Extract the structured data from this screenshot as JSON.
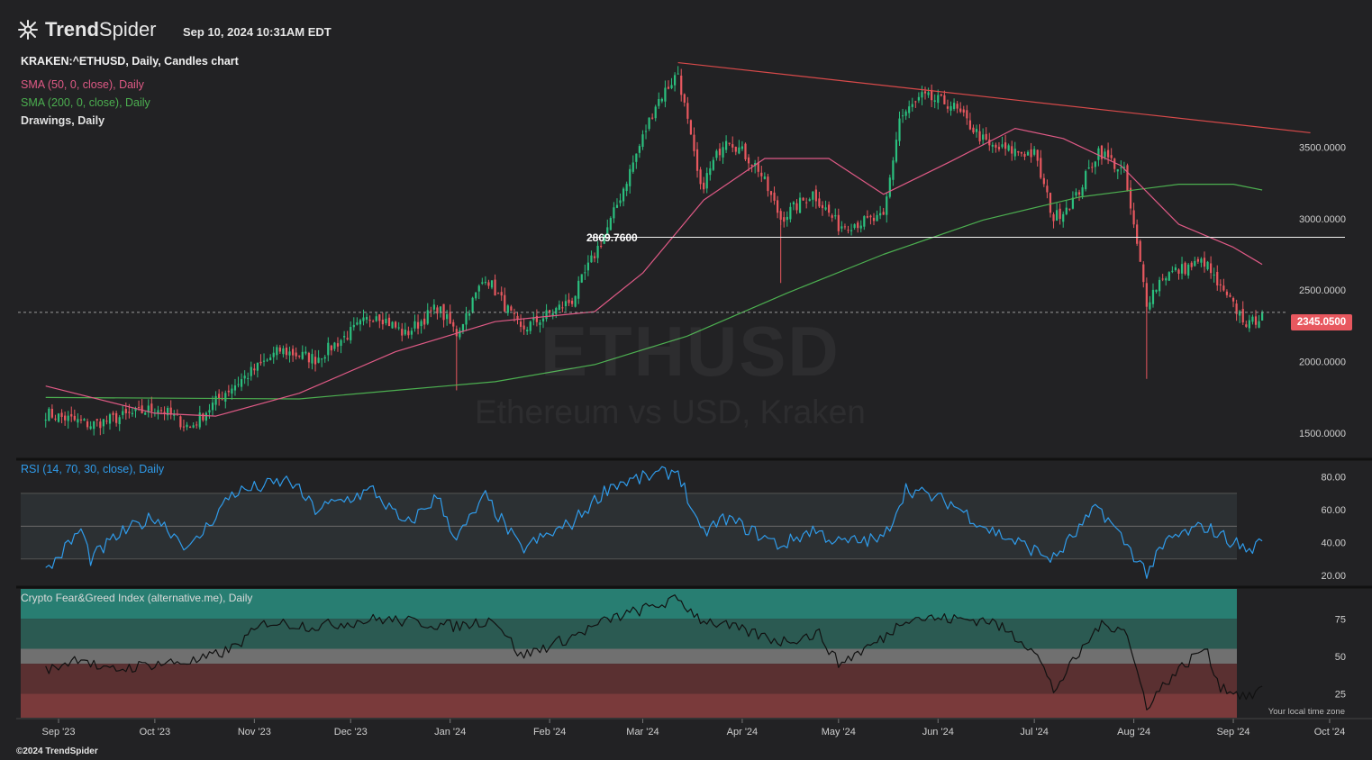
{
  "header": {
    "brand_bold": "Trend",
    "brand_light": "Spider",
    "timestamp": "Sep 10, 2024 10:31AM EDT",
    "symbol_line": "KRAKEN:^ETHUSD, Daily, Candles chart",
    "sma50": "SMA (50, 0, close), Daily",
    "sma200": "SMA (200, 0, close), Daily",
    "drawings": "Drawings, Daily"
  },
  "watermark": {
    "ticker": "ETHUSD",
    "name": "Ethereum vs USD, Kraken"
  },
  "footer": {
    "copyright": "©2024 TrendSpider",
    "timezone_note": "Your local time zone"
  },
  "colors": {
    "background": "#222224",
    "candle_up": "#2bbf7e",
    "candle_down": "#e8585f",
    "sma50": "#e05a86",
    "sma200": "#4caf50",
    "rsi": "#2f9bea",
    "trendline": "#d84a4a",
    "fear_greed_line": "#111111"
  },
  "chart_data": [
    {
      "type": "candlestick",
      "name": "price",
      "ylim": [
        1350,
        4150
      ],
      "yticks": [
        "3500.0000",
        "3000.0000",
        "2500.0000",
        "2000.0000",
        "1500.0000"
      ],
      "ytick_values": [
        3500,
        3000,
        2500,
        2000,
        1500
      ],
      "x_dates": [
        "Sep '23",
        "Oct '23",
        "Nov '23",
        "Dec '23",
        "Jan '24",
        "Feb '24",
        "Mar '24",
        "Apr '24",
        "May '24",
        "Jun '24",
        "Jul '24",
        "Aug '24",
        "Sep '24",
        "Oct '24"
      ],
      "last_price": "2345.0500",
      "last_price_value": 2345.05,
      "horizontal_level": "2869.7600",
      "horizontal_level_value": 2869.76,
      "trendline_label": "",
      "trendline_points": [
        {
          "date": "2024-03-12",
          "value": 4090
        },
        {
          "date": "2024-09-25",
          "value": 3600
        }
      ],
      "close_anchors": [
        {
          "date": "2023-08-28",
          "value": 1640
        },
        {
          "date": "2023-09-11",
          "value": 1560
        },
        {
          "date": "2023-10-02",
          "value": 1680
        },
        {
          "date": "2023-10-12",
          "value": 1540
        },
        {
          "date": "2023-10-23",
          "value": 1790
        },
        {
          "date": "2023-11-09",
          "value": 2080
        },
        {
          "date": "2023-11-20",
          "value": 2020
        },
        {
          "date": "2023-12-09",
          "value": 2340
        },
        {
          "date": "2023-12-18",
          "value": 2190
        },
        {
          "date": "2023-12-28",
          "value": 2380
        },
        {
          "date": "2024-01-03",
          "value": 2200
        },
        {
          "date": "2024-01-12",
          "value": 2600
        },
        {
          "date": "2024-01-23",
          "value": 2220
        },
        {
          "date": "2024-02-08",
          "value": 2430
        },
        {
          "date": "2024-02-20",
          "value": 2980
        },
        {
          "date": "2024-03-05",
          "value": 3800
        },
        {
          "date": "2024-03-12",
          "value": 4020
        },
        {
          "date": "2024-03-19",
          "value": 3200
        },
        {
          "date": "2024-03-27",
          "value": 3580
        },
        {
          "date": "2024-04-06",
          "value": 3350
        },
        {
          "date": "2024-04-13",
          "value": 3000
        },
        {
          "date": "2024-04-23",
          "value": 3180
        },
        {
          "date": "2024-05-01",
          "value": 2950
        },
        {
          "date": "2024-05-15",
          "value": 3000
        },
        {
          "date": "2024-05-20",
          "value": 3700
        },
        {
          "date": "2024-05-27",
          "value": 3850
        },
        {
          "date": "2024-06-05",
          "value": 3800
        },
        {
          "date": "2024-06-17",
          "value": 3500
        },
        {
          "date": "2024-07-01",
          "value": 3450
        },
        {
          "date": "2024-07-07",
          "value": 3000
        },
        {
          "date": "2024-07-14",
          "value": 3150
        },
        {
          "date": "2024-07-21",
          "value": 3480
        },
        {
          "date": "2024-07-29",
          "value": 3320
        },
        {
          "date": "2024-08-05",
          "value": 2420
        },
        {
          "date": "2024-08-10",
          "value": 2600
        },
        {
          "date": "2024-08-23",
          "value": 2700
        },
        {
          "date": "2024-08-28",
          "value": 2500
        },
        {
          "date": "2024-09-06",
          "value": 2250
        },
        {
          "date": "2024-09-10",
          "value": 2345
        }
      ],
      "sma50_points": [
        {
          "date": "2023-08-28",
          "value": 1830
        },
        {
          "date": "2023-10-01",
          "value": 1640
        },
        {
          "date": "2023-10-20",
          "value": 1620
        },
        {
          "date": "2023-11-15",
          "value": 1780
        },
        {
          "date": "2023-12-15",
          "value": 2070
        },
        {
          "date": "2024-01-15",
          "value": 2280
        },
        {
          "date": "2024-02-15",
          "value": 2350
        },
        {
          "date": "2024-03-01",
          "value": 2620
        },
        {
          "date": "2024-03-20",
          "value": 3130
        },
        {
          "date": "2024-04-08",
          "value": 3420
        },
        {
          "date": "2024-04-28",
          "value": 3420
        },
        {
          "date": "2024-05-15",
          "value": 3170
        },
        {
          "date": "2024-06-05",
          "value": 3400
        },
        {
          "date": "2024-06-25",
          "value": 3630
        },
        {
          "date": "2024-07-10",
          "value": 3560
        },
        {
          "date": "2024-07-28",
          "value": 3370
        },
        {
          "date": "2024-08-15",
          "value": 2960
        },
        {
          "date": "2024-09-01",
          "value": 2800
        },
        {
          "date": "2024-09-10",
          "value": 2680
        }
      ],
      "sma200_points": [
        {
          "date": "2023-08-28",
          "value": 1750
        },
        {
          "date": "2023-11-15",
          "value": 1740
        },
        {
          "date": "2023-12-15",
          "value": 1800
        },
        {
          "date": "2024-01-15",
          "value": 1860
        },
        {
          "date": "2024-02-15",
          "value": 1980
        },
        {
          "date": "2024-03-15",
          "value": 2180
        },
        {
          "date": "2024-04-15",
          "value": 2480
        },
        {
          "date": "2024-05-15",
          "value": 2750
        },
        {
          "date": "2024-06-15",
          "value": 2990
        },
        {
          "date": "2024-07-15",
          "value": 3150
        },
        {
          "date": "2024-08-15",
          "value": 3240
        },
        {
          "date": "2024-09-01",
          "value": 3240
        },
        {
          "date": "2024-09-10",
          "value": 3200
        }
      ]
    },
    {
      "type": "line",
      "name": "RSI (14, 70, 30, close), Daily",
      "ylim": [
        14,
        88
      ],
      "yticks": [
        "80.00",
        "60.00",
        "40.00",
        "20.00"
      ],
      "ytick_values": [
        80,
        60,
        40,
        20
      ],
      "bands": [
        70,
        30
      ],
      "midline": 50,
      "points": [
        {
          "date": "2023-08-28",
          "value": 22
        },
        {
          "date": "2023-09-08",
          "value": 48
        },
        {
          "date": "2023-09-11",
          "value": 30
        },
        {
          "date": "2023-09-20",
          "value": 45
        },
        {
          "date": "2023-10-01",
          "value": 56
        },
        {
          "date": "2023-10-12",
          "value": 36
        },
        {
          "date": "2023-10-25",
          "value": 70
        },
        {
          "date": "2023-11-12",
          "value": 78
        },
        {
          "date": "2023-11-20",
          "value": 60
        },
        {
          "date": "2023-12-08",
          "value": 72
        },
        {
          "date": "2023-12-18",
          "value": 50
        },
        {
          "date": "2023-12-28",
          "value": 68
        },
        {
          "date": "2024-01-03",
          "value": 42
        },
        {
          "date": "2024-01-12",
          "value": 68
        },
        {
          "date": "2024-01-23",
          "value": 36
        },
        {
          "date": "2024-02-08",
          "value": 52
        },
        {
          "date": "2024-02-20",
          "value": 75
        },
        {
          "date": "2024-03-12",
          "value": 84
        },
        {
          "date": "2024-03-19",
          "value": 45
        },
        {
          "date": "2024-03-27",
          "value": 55
        },
        {
          "date": "2024-04-13",
          "value": 38
        },
        {
          "date": "2024-04-23",
          "value": 48
        },
        {
          "date": "2024-05-01",
          "value": 40
        },
        {
          "date": "2024-05-15",
          "value": 42
        },
        {
          "date": "2024-05-22",
          "value": 73
        },
        {
          "date": "2024-06-05",
          "value": 64
        },
        {
          "date": "2024-06-17",
          "value": 48
        },
        {
          "date": "2024-07-07",
          "value": 30
        },
        {
          "date": "2024-07-21",
          "value": 62
        },
        {
          "date": "2024-08-05",
          "value": 22
        },
        {
          "date": "2024-08-12",
          "value": 42
        },
        {
          "date": "2024-08-23",
          "value": 50
        },
        {
          "date": "2024-09-06",
          "value": 35
        },
        {
          "date": "2024-09-10",
          "value": 41
        }
      ]
    },
    {
      "type": "line",
      "name": "Crypto Fear&Greed Index (alternative.me), Daily",
      "ylim": [
        9,
        95
      ],
      "yticks": [
        "75",
        "50",
        "25"
      ],
      "ytick_values": [
        75,
        50,
        25
      ],
      "zone_edges": [
        95,
        75,
        55,
        45,
        25,
        9
      ],
      "zone_colors": [
        "#287e72",
        "#2b5a52",
        "#707070",
        "#5a3031",
        "#7a3a3b"
      ],
      "points": [
        {
          "date": "2023-08-28",
          "value": 40
        },
        {
          "date": "2023-09-08",
          "value": 50
        },
        {
          "date": "2023-09-15",
          "value": 40
        },
        {
          "date": "2023-10-01",
          "value": 45
        },
        {
          "date": "2023-10-15",
          "value": 47
        },
        {
          "date": "2023-10-25",
          "value": 55
        },
        {
          "date": "2023-11-05",
          "value": 73
        },
        {
          "date": "2023-11-20",
          "value": 70
        },
        {
          "date": "2023-12-10",
          "value": 75
        },
        {
          "date": "2024-01-03",
          "value": 70
        },
        {
          "date": "2024-01-15",
          "value": 75
        },
        {
          "date": "2024-01-23",
          "value": 50
        },
        {
          "date": "2024-02-08",
          "value": 63
        },
        {
          "date": "2024-02-20",
          "value": 75
        },
        {
          "date": "2024-03-12",
          "value": 88
        },
        {
          "date": "2024-03-19",
          "value": 75
        },
        {
          "date": "2024-04-13",
          "value": 60
        },
        {
          "date": "2024-04-25",
          "value": 65
        },
        {
          "date": "2024-05-01",
          "value": 45
        },
        {
          "date": "2024-05-15",
          "value": 62
        },
        {
          "date": "2024-05-22",
          "value": 76
        },
        {
          "date": "2024-06-17",
          "value": 74
        },
        {
          "date": "2024-07-01",
          "value": 55
        },
        {
          "date": "2024-07-07",
          "value": 27
        },
        {
          "date": "2024-07-21",
          "value": 70
        },
        {
          "date": "2024-07-29",
          "value": 70
        },
        {
          "date": "2024-08-05",
          "value": 17
        },
        {
          "date": "2024-08-12",
          "value": 35
        },
        {
          "date": "2024-08-23",
          "value": 56
        },
        {
          "date": "2024-08-28",
          "value": 30
        },
        {
          "date": "2024-09-06",
          "value": 22
        },
        {
          "date": "2024-09-10",
          "value": 30
        }
      ]
    }
  ]
}
